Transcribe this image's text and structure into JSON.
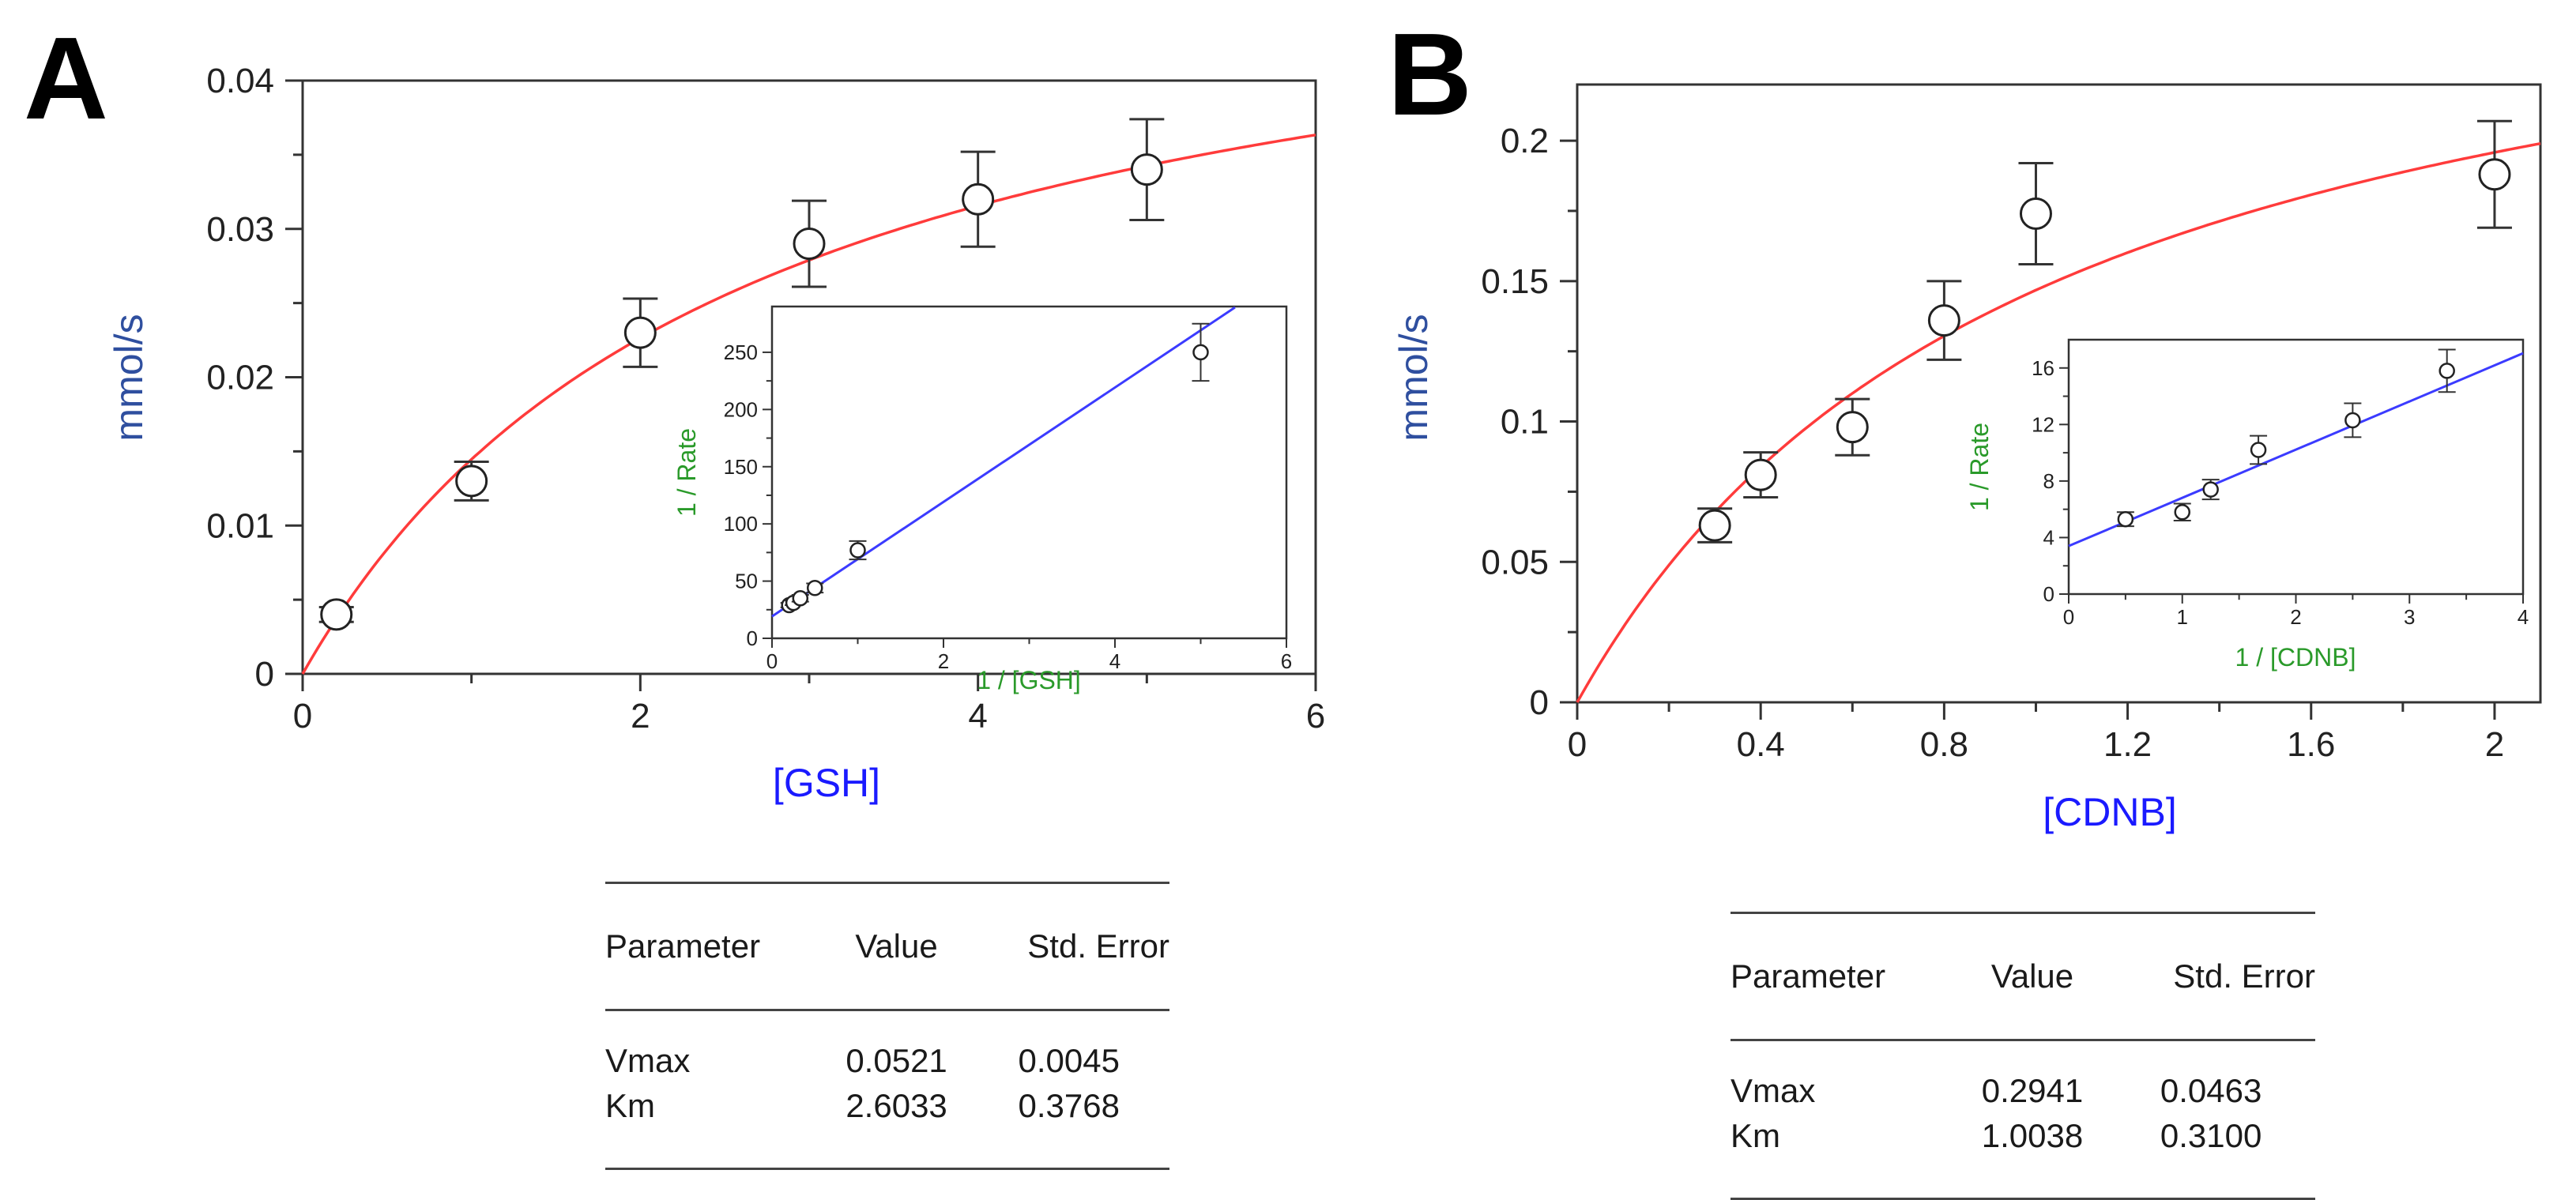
{
  "chart_data": [
    {
      "panel_label": "A",
      "type": "scatter",
      "xlabel": "[GSH]",
      "ylabel": "mmol/s",
      "xlim": [
        0,
        6
      ],
      "ylim": [
        0,
        0.04
      ],
      "x_ticks": [
        0,
        2,
        4,
        6
      ],
      "y_ticks": [
        0,
        0.01,
        0.02,
        0.03,
        0.04
      ],
      "x_tick_labels": [
        "0",
        "2",
        "4",
        "6"
      ],
      "y_tick_labels": [
        "0",
        "0.01",
        "0.02",
        "0.03",
        "0.04"
      ],
      "points": [
        {
          "x": 0.2,
          "y": 0.004,
          "err": 0.0005
        },
        {
          "x": 1.0,
          "y": 0.013,
          "err": 0.0013
        },
        {
          "x": 2.0,
          "y": 0.023,
          "err": 0.0023
        },
        {
          "x": 3.0,
          "y": 0.029,
          "err": 0.0029
        },
        {
          "x": 4.0,
          "y": 0.032,
          "err": 0.0032
        },
        {
          "x": 5.0,
          "y": 0.034,
          "err": 0.0034
        }
      ],
      "fit": {
        "model": "michaelis-menten",
        "Vmax": 0.0521,
        "Km": 2.6033,
        "color": "#ff3b3b"
      },
      "inset": {
        "type": "scatter",
        "xlabel": "1 / [GSH]",
        "ylabel": "1 / Rate",
        "xlim": [
          0,
          6
        ],
        "ylim": [
          0,
          290
        ],
        "x_ticks": [
          0,
          2,
          4,
          6
        ],
        "y_ticks": [
          0,
          50,
          100,
          150,
          200,
          250
        ],
        "x_tick_labels": [
          "0",
          "2",
          "4",
          "6"
        ],
        "y_tick_labels": [
          "0",
          "50",
          "100",
          "150",
          "200",
          "250"
        ],
        "points": [
          {
            "x": 0.2,
            "y": 29,
            "err": 2
          },
          {
            "x": 0.25,
            "y": 31,
            "err": 2
          },
          {
            "x": 0.33,
            "y": 35,
            "err": 3
          },
          {
            "x": 0.5,
            "y": 44,
            "err": 4
          },
          {
            "x": 1.0,
            "y": 77,
            "err": 8
          },
          {
            "x": 5.0,
            "y": 250,
            "err": 25
          }
        ],
        "line": {
          "intercept": 19.2,
          "slope": 50.0,
          "x_range": [
            0,
            5.4
          ],
          "color": "#3b3bff"
        }
      },
      "table": {
        "headers": [
          "Parameter",
          "Value",
          "Std. Error"
        ],
        "rows": [
          [
            "Vmax",
            "0.0521",
            "0.0045"
          ],
          [
            "Km",
            "2.6033",
            "0.3768"
          ]
        ]
      }
    },
    {
      "panel_label": "B",
      "type": "scatter",
      "xlabel": "[CDNB]",
      "ylabel": "mmol/s",
      "xlim": [
        0,
        2.1
      ],
      "ylim": [
        0,
        0.22
      ],
      "x_ticks": [
        0,
        0.4,
        0.8,
        1.2,
        1.6,
        2
      ],
      "y_ticks": [
        0,
        0.05,
        0.1,
        0.15,
        0.2
      ],
      "x_tick_labels": [
        "0",
        "0.4",
        "0.8",
        "1.2",
        "1.6",
        "2"
      ],
      "y_tick_labels": [
        "0",
        "0.05",
        "0.1",
        "0.15",
        "0.2"
      ],
      "points": [
        {
          "x": 0.3,
          "y": 0.063,
          "err": 0.006
        },
        {
          "x": 0.4,
          "y": 0.081,
          "err": 0.008
        },
        {
          "x": 0.6,
          "y": 0.098,
          "err": 0.01
        },
        {
          "x": 0.8,
          "y": 0.136,
          "err": 0.014
        },
        {
          "x": 1.0,
          "y": 0.174,
          "err": 0.018
        },
        {
          "x": 2.0,
          "y": 0.188,
          "err": 0.019
        }
      ],
      "fit": {
        "model": "michaelis-menten",
        "Vmax": 0.2941,
        "Km": 1.0038,
        "color": "#ff3b3b"
      },
      "inset": {
        "type": "scatter",
        "xlabel": "1 / [CDNB]",
        "ylabel": "1 / Rate",
        "xlim": [
          0,
          4
        ],
        "ylim": [
          0,
          18
        ],
        "x_ticks": [
          0,
          1,
          2,
          3,
          4
        ],
        "y_ticks": [
          0,
          4,
          8,
          12,
          16
        ],
        "x_tick_labels": [
          "0",
          "1",
          "2",
          "3",
          "4"
        ],
        "y_tick_labels": [
          "0",
          "4",
          "8",
          "12",
          "16"
        ],
        "points": [
          {
            "x": 0.5,
            "y": 5.3,
            "err": 0.5
          },
          {
            "x": 1.0,
            "y": 5.8,
            "err": 0.6
          },
          {
            "x": 1.25,
            "y": 7.4,
            "err": 0.7
          },
          {
            "x": 1.67,
            "y": 10.2,
            "err": 1.0
          },
          {
            "x": 2.5,
            "y": 12.3,
            "err": 1.2
          },
          {
            "x": 3.33,
            "y": 15.8,
            "err": 1.5
          }
        ],
        "line": {
          "intercept": 3.4,
          "slope": 3.41,
          "x_range": [
            0,
            4
          ],
          "color": "#3b3bff"
        }
      },
      "table": {
        "headers": [
          "Parameter",
          "Value",
          "Std. Error"
        ],
        "rows": [
          [
            "Vmax",
            "0.2941",
            "0.0463"
          ],
          [
            "Km",
            "1.0038",
            "0.3100"
          ]
        ]
      }
    }
  ]
}
